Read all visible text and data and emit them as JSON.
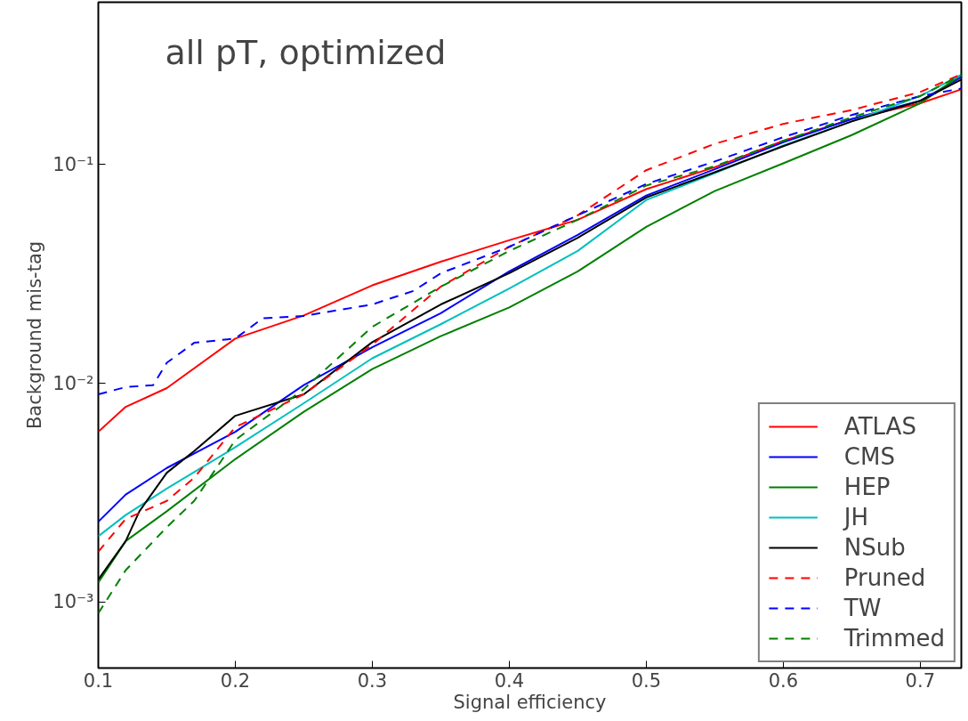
{
  "chart_data": {
    "type": "line",
    "title": "all pT, optimized",
    "xlabel": "Signal efficiency",
    "ylabel": "Background mis-tag",
    "log": "y",
    "grid": false,
    "legend": "bottom right",
    "xlim": [
      0.1,
      0.73
    ],
    "ylim": [
      0.0005,
      0.55
    ],
    "xticks": [
      0.1,
      0.2,
      0.3,
      0.4,
      0.5,
      0.6,
      0.7
    ],
    "yticks": [
      {
        "value": 0.001,
        "label": "10⁻³"
      },
      {
        "value": 0.01,
        "label": "10⁻²"
      },
      {
        "value": 0.1,
        "label": "10⁻¹"
      }
    ],
    "series": [
      {
        "name": "ATLAS",
        "color": "#ff0000",
        "line_style": "solid",
        "x": [
          0.1,
          0.12,
          0.15,
          0.2,
          0.25,
          0.3,
          0.35,
          0.4,
          0.45,
          0.5,
          0.55,
          0.6,
          0.65,
          0.7,
          0.73
        ],
        "values": [
          0.006,
          0.0078,
          0.0095,
          0.016,
          0.0204,
          0.028,
          0.0359,
          0.045,
          0.0558,
          0.077,
          0.097,
          0.128,
          0.161,
          0.19,
          0.22
        ]
      },
      {
        "name": "CMS",
        "color": "#0000ff",
        "line_style": "solid",
        "x": [
          0.1,
          0.12,
          0.15,
          0.2,
          0.25,
          0.3,
          0.35,
          0.4,
          0.45,
          0.5,
          0.55,
          0.6,
          0.65,
          0.7,
          0.73
        ],
        "values": [
          0.00233,
          0.0031,
          0.0041,
          0.006,
          0.0098,
          0.0146,
          0.0209,
          0.0324,
          0.0476,
          0.072,
          0.095,
          0.126,
          0.161,
          0.195,
          0.25
        ]
      },
      {
        "name": "HEP",
        "color": "#008000",
        "line_style": "solid",
        "x": [
          0.1,
          0.12,
          0.15,
          0.2,
          0.25,
          0.3,
          0.35,
          0.4,
          0.45,
          0.5,
          0.55,
          0.6,
          0.65,
          0.7,
          0.73
        ],
        "values": [
          0.00123,
          0.0019,
          0.0026,
          0.0045,
          0.0074,
          0.0116,
          0.0164,
          0.0222,
          0.0324,
          0.0518,
          0.0755,
          0.101,
          0.136,
          0.19,
          0.256
        ]
      },
      {
        "name": "JH",
        "color": "#00bfbf",
        "line_style": "solid",
        "x": [
          0.1,
          0.12,
          0.15,
          0.2,
          0.25,
          0.3,
          0.35,
          0.4,
          0.45,
          0.5,
          0.55,
          0.6,
          0.65,
          0.7,
          0.73
        ],
        "values": [
          0.002,
          0.0025,
          0.0033,
          0.0051,
          0.0081,
          0.013,
          0.0186,
          0.0271,
          0.0402,
          0.0687,
          0.091,
          0.122,
          0.157,
          0.205,
          0.256
        ]
      },
      {
        "name": "NSub",
        "color": "#000000",
        "line_style": "solid",
        "x": [
          0.1,
          0.12,
          0.13,
          0.15,
          0.17,
          0.2,
          0.25,
          0.3,
          0.35,
          0.4,
          0.45,
          0.5,
          0.55,
          0.6,
          0.65,
          0.7,
          0.73
        ],
        "values": [
          0.00127,
          0.0019,
          0.0026,
          0.0039,
          0.0049,
          0.0071,
          0.0089,
          0.0154,
          0.0229,
          0.0318,
          0.0462,
          0.0706,
          0.092,
          0.121,
          0.157,
          0.195,
          0.244
        ]
      },
      {
        "name": "Pruned",
        "color": "#ff0000",
        "line_style": "dashed",
        "x": [
          0.1,
          0.12,
          0.15,
          0.17,
          0.2,
          0.25,
          0.3,
          0.35,
          0.4,
          0.45,
          0.5,
          0.55,
          0.6,
          0.65,
          0.7,
          0.73
        ],
        "values": [
          0.0017,
          0.0024,
          0.0029,
          0.0037,
          0.0063,
          0.0089,
          0.015,
          0.0276,
          0.042,
          0.0585,
          0.094,
          0.124,
          0.153,
          0.177,
          0.214,
          0.258
        ]
      },
      {
        "name": "TW",
        "color": "#0000ff",
        "line_style": "dashed",
        "x": [
          0.1,
          0.12,
          0.14,
          0.15,
          0.17,
          0.2,
          0.22,
          0.25,
          0.3,
          0.33,
          0.35,
          0.4,
          0.45,
          0.5,
          0.55,
          0.6,
          0.65,
          0.7,
          0.73
        ],
        "values": [
          0.0089,
          0.0096,
          0.0098,
          0.0124,
          0.0153,
          0.016,
          0.0198,
          0.0203,
          0.0229,
          0.0264,
          0.0318,
          0.042,
          0.0585,
          0.0813,
          0.103,
          0.133,
          0.168,
          0.205,
          0.222
        ]
      },
      {
        "name": "Trimmed",
        "color": "#008000",
        "line_style": "dashed",
        "x": [
          0.1,
          0.12,
          0.15,
          0.17,
          0.2,
          0.25,
          0.3,
          0.35,
          0.4,
          0.45,
          0.5,
          0.55,
          0.6,
          0.65,
          0.7,
          0.73
        ],
        "values": [
          0.00089,
          0.0014,
          0.0022,
          0.0029,
          0.0055,
          0.0094,
          0.0181,
          0.0276,
          0.0402,
          0.0558,
          0.08,
          0.098,
          0.128,
          0.164,
          0.205,
          0.256
        ]
      }
    ]
  }
}
